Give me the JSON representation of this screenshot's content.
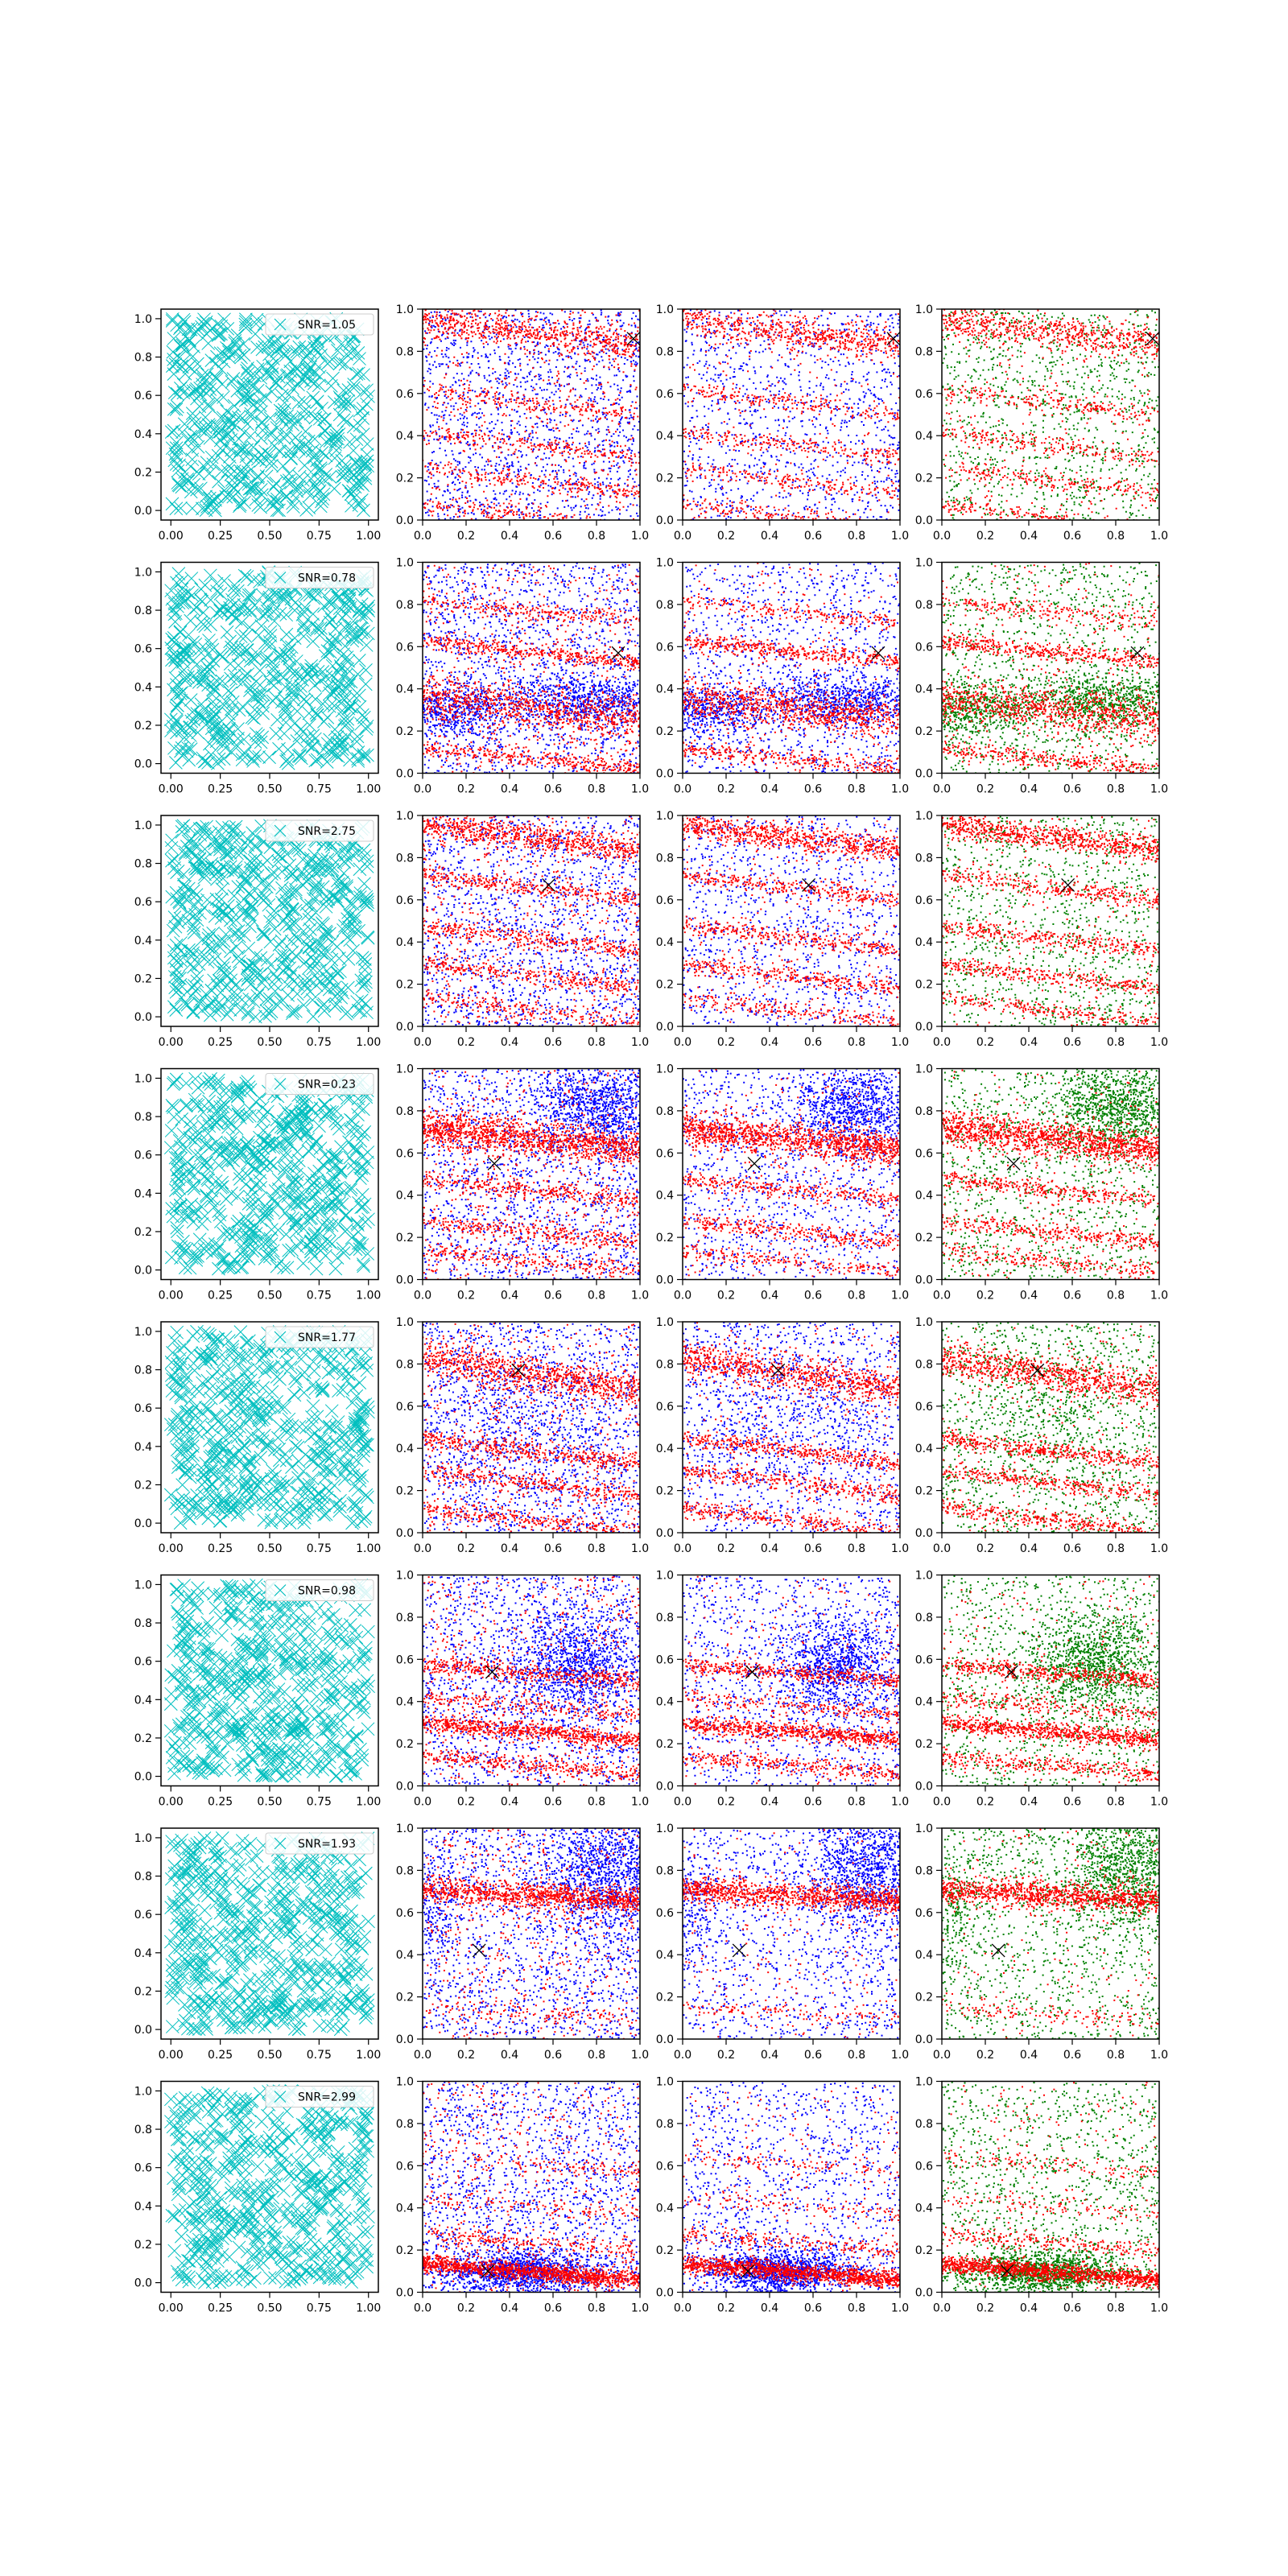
{
  "figure": {
    "grid": "8 rows x 4 columns of scatter panels",
    "colors": {
      "cyan": "#00bfbf",
      "blue": "#0000ff",
      "red": "#ff0000",
      "green": "#008000",
      "marker": "#000000",
      "frame": "#000000"
    }
  },
  "axes": {
    "col1": {
      "xlim": [
        -0.05,
        1.05
      ],
      "ylim": [
        -0.05,
        1.05
      ],
      "xticks": [
        "0.00",
        "0.25",
        "0.50",
        "0.75",
        "1.00"
      ],
      "yticks": [
        "0.0",
        "0.2",
        "0.4",
        "0.6",
        "0.8",
        "1.0"
      ]
    },
    "cols234": {
      "xlim": [
        0,
        1
      ],
      "ylim": [
        0,
        1
      ],
      "xticks": [
        "0.0",
        "0.2",
        "0.4",
        "0.6",
        "0.8",
        "1.0"
      ],
      "yticks": [
        "0.0",
        "0.2",
        "0.4",
        "0.6",
        "0.8",
        "1.0"
      ]
    }
  },
  "chart_data": [
    {
      "row": 1,
      "type": "scatter",
      "legend": "SNR=1.05",
      "marker": [
        0.97,
        0.86
      ],
      "stripes": [
        [
          0.95,
          -0.12,
          0.04,
          0.3
        ],
        [
          0.62,
          -0.12,
          0.02,
          0.1
        ],
        [
          0.42,
          -0.12,
          0.02,
          0.1
        ],
        [
          0.25,
          -0.12,
          0.02,
          0.1
        ],
        [
          0.08,
          -0.12,
          0.02,
          0.1
        ]
      ],
      "blobs": []
    },
    {
      "row": 2,
      "type": "scatter",
      "legend": "SNR=0.78",
      "marker": [
        0.9,
        0.57
      ],
      "stripes": [
        [
          0.36,
          -0.1,
          0.05,
          0.4
        ],
        [
          0.63,
          -0.1,
          0.02,
          0.2
        ],
        [
          0.12,
          -0.1,
          0.02,
          0.15
        ],
        [
          0.82,
          -0.1,
          0.02,
          0.1
        ]
      ],
      "blobs": [
        [
          0.75,
          0.35,
          0.2,
          0.06,
          0.4
        ],
        [
          0.1,
          0.3,
          0.15,
          0.06,
          0.3
        ]
      ]
    },
    {
      "row": 3,
      "type": "scatter",
      "legend": "SNR=2.75",
      "marker": [
        0.58,
        0.67
      ],
      "stripes": [
        [
          0.96,
          -0.12,
          0.03,
          0.35
        ],
        [
          0.72,
          -0.12,
          0.02,
          0.15
        ],
        [
          0.48,
          -0.12,
          0.02,
          0.15
        ],
        [
          0.3,
          -0.12,
          0.02,
          0.15
        ],
        [
          0.14,
          -0.12,
          0.02,
          0.1
        ]
      ],
      "blobs": []
    },
    {
      "row": 4,
      "type": "scatter",
      "legend": "SNR=0.23",
      "marker": [
        0.33,
        0.55
      ],
      "stripes": [
        [
          0.72,
          -0.1,
          0.04,
          0.6
        ],
        [
          0.48,
          -0.1,
          0.02,
          0.15
        ],
        [
          0.28,
          -0.1,
          0.02,
          0.15
        ],
        [
          0.14,
          -0.1,
          0.02,
          0.1
        ]
      ],
      "blobs": [
        [
          0.8,
          0.82,
          0.15,
          0.1,
          0.5
        ]
      ]
    },
    {
      "row": 5,
      "type": "scatter",
      "legend": "SNR=1.77",
      "marker": [
        0.44,
        0.77
      ],
      "stripes": [
        [
          0.83,
          -0.15,
          0.04,
          0.4
        ],
        [
          0.45,
          -0.12,
          0.02,
          0.2
        ],
        [
          0.3,
          -0.12,
          0.02,
          0.15
        ],
        [
          0.12,
          -0.12,
          0.02,
          0.15
        ]
      ],
      "blobs": [
        [
          0.5,
          0.55,
          0.3,
          0.2,
          0.25
        ]
      ]
    },
    {
      "row": 6,
      "type": "scatter",
      "legend": "SNR=0.98",
      "marker": [
        0.32,
        0.54
      ],
      "stripes": [
        [
          0.58,
          -0.08,
          0.02,
          0.2
        ],
        [
          0.3,
          -0.08,
          0.02,
          0.35
        ],
        [
          0.42,
          -0.08,
          0.02,
          0.1
        ],
        [
          0.14,
          -0.08,
          0.02,
          0.15
        ]
      ],
      "blobs": [
        [
          0.7,
          0.58,
          0.15,
          0.12,
          0.55
        ]
      ]
    },
    {
      "row": 7,
      "type": "scatter",
      "legend": "SNR=1.93",
      "marker": [
        0.26,
        0.42
      ],
      "stripes": [
        [
          0.71,
          -0.05,
          0.03,
          0.5
        ],
        [
          0.15,
          -0.05,
          0.02,
          0.05
        ]
      ],
      "blobs": [
        [
          0.85,
          0.8,
          0.15,
          0.15,
          0.6
        ],
        [
          0.05,
          0.6,
          0.05,
          0.15,
          0.1
        ]
      ]
    },
    {
      "row": 8,
      "type": "scatter",
      "legend": "SNR=2.99",
      "marker": [
        0.3,
        0.1
      ],
      "stripes": [
        [
          0.14,
          -0.08,
          0.02,
          0.6
        ],
        [
          0.28,
          -0.08,
          0.02,
          0.1
        ],
        [
          0.45,
          -0.08,
          0.02,
          0.05
        ],
        [
          0.65,
          -0.08,
          0.02,
          0.05
        ]
      ],
      "blobs": [
        [
          0.45,
          0.1,
          0.18,
          0.05,
          0.7
        ]
      ]
    }
  ]
}
